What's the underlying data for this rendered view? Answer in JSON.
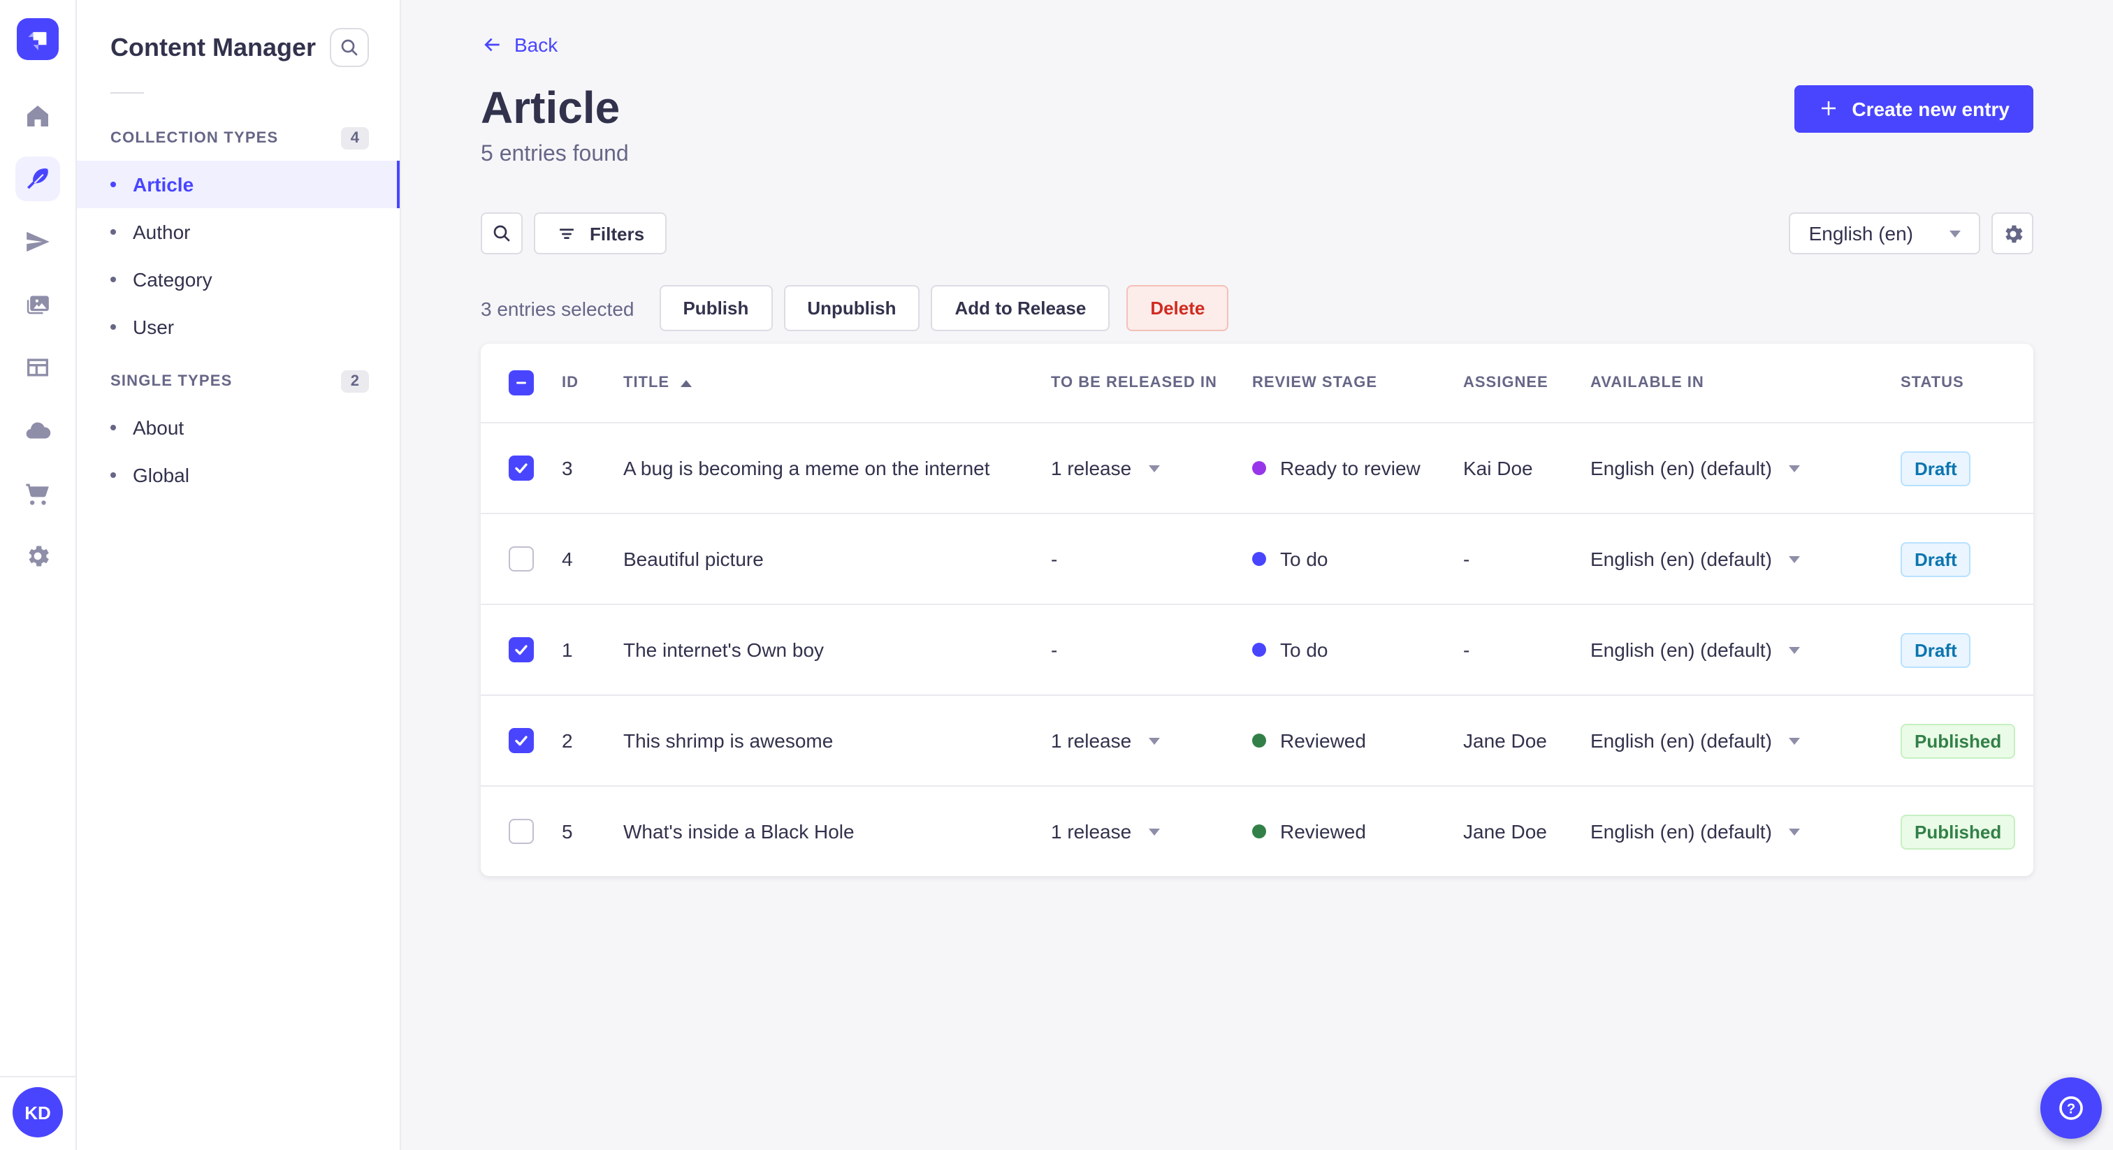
{
  "colors": {
    "primary": "#4945ff",
    "primary_light": "#f0f0ff",
    "text_dark": "#32324d",
    "text_gray": "#666687",
    "border": "#dcdce4",
    "background": "#f6f6f9",
    "danger_text": "#d02b20",
    "danger_bg": "#fcecea",
    "draft_text": "#0c75af",
    "draft_bg": "#eaf5ff",
    "published_text": "#328048",
    "published_bg": "#eafbe7"
  },
  "icon_rail": {
    "logo_icon": "strapi-logo",
    "items": [
      {
        "icon": "home-icon",
        "active": false
      },
      {
        "icon": "feather-icon",
        "active": true
      },
      {
        "icon": "paper-plane-icon",
        "active": false
      },
      {
        "icon": "media-library-icon",
        "active": false
      },
      {
        "icon": "grid-layout-icon",
        "active": false
      },
      {
        "icon": "cloud-icon",
        "active": false
      },
      {
        "icon": "cart-icon",
        "active": false
      },
      {
        "icon": "gear-icon",
        "active": false
      }
    ],
    "avatar_initials": "KD"
  },
  "sidebar": {
    "title": "Content Manager",
    "search_icon": "search-icon",
    "sections": [
      {
        "label": "COLLECTION TYPES",
        "count": "4",
        "items": [
          {
            "label": "Article",
            "active": true
          },
          {
            "label": "Author",
            "active": false
          },
          {
            "label": "Category",
            "active": false
          },
          {
            "label": "User",
            "active": false
          }
        ]
      },
      {
        "label": "SINGLE TYPES",
        "count": "2",
        "items": [
          {
            "label": "About",
            "active": false
          },
          {
            "label": "Global",
            "active": false
          }
        ]
      }
    ]
  },
  "header": {
    "back_label": "Back",
    "title": "Article",
    "subtitle": "5 entries found",
    "create_label": "Create new entry"
  },
  "toolbar": {
    "filters_label": "Filters",
    "locale": "English (en)"
  },
  "selection": {
    "text": "3 entries selected",
    "publish": "Publish",
    "unpublish": "Unpublish",
    "add_to_release": "Add to Release",
    "delete": "Delete"
  },
  "table": {
    "header_checkbox": "indeterminate",
    "columns": [
      "ID",
      "TITLE",
      "TO BE RELEASED IN",
      "REVIEW STAGE",
      "ASSIGNEE",
      "AVAILABLE IN",
      "STATUS"
    ],
    "sorted_column": "TITLE",
    "sort_direction": "ascending",
    "rows": [
      {
        "selected": true,
        "id": "3",
        "title": "A bug is becoming a meme on the internet",
        "released": "1 release",
        "released_caret": true,
        "review": "Ready to review",
        "review_color": "#9736e8",
        "assignee": "Kai Doe",
        "available": "English (en) (default)",
        "status": "Draft"
      },
      {
        "selected": false,
        "id": "4",
        "title": "Beautiful picture",
        "released": "-",
        "released_caret": false,
        "review": "To do",
        "review_color": "#4945ff",
        "assignee": "-",
        "available": "English (en) (default)",
        "status": "Draft"
      },
      {
        "selected": true,
        "id": "1",
        "title": "The internet's Own boy",
        "released": "-",
        "released_caret": false,
        "review": "To do",
        "review_color": "#4945ff",
        "assignee": "-",
        "available": "English (en) (default)",
        "status": "Draft"
      },
      {
        "selected": true,
        "id": "2",
        "title": "This shrimp is awesome",
        "released": "1 release",
        "released_caret": true,
        "review": "Reviewed",
        "review_color": "#328048",
        "assignee": "Jane Doe",
        "available": "English (en) (default)",
        "status": "Published"
      },
      {
        "selected": false,
        "id": "5",
        "title": "What's inside a Black Hole",
        "released": "1 release",
        "released_caret": true,
        "review": "Reviewed",
        "review_color": "#328048",
        "assignee": "Jane Doe",
        "available": "English (en) (default)",
        "status": "Published"
      }
    ]
  },
  "help": {
    "icon": "help-icon"
  }
}
